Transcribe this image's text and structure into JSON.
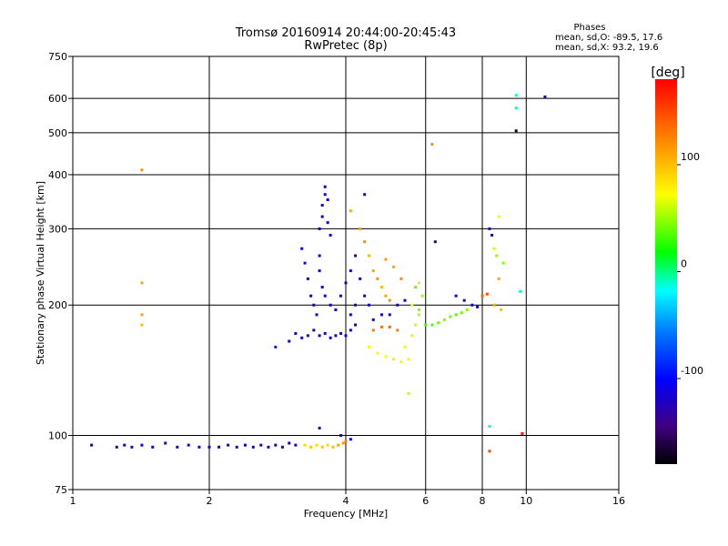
{
  "chart_data": {
    "type": "scatter",
    "title": "Tromsø 20160914 20:44:00-20:45:43",
    "subtitle": "RwPretec (8p)",
    "xlabel": "Frequency [MHz]",
    "ylabel": "Stationary phase Virtual Height [km]",
    "x_scale": "log",
    "y_scale": "log",
    "xlim": [
      1,
      16
    ],
    "ylim": [
      75,
      750
    ],
    "x_ticks": [
      1,
      2,
      4,
      6,
      8,
      10,
      16
    ],
    "y_ticks": [
      75,
      100,
      200,
      300,
      400,
      500,
      600,
      750
    ],
    "grid": true,
    "stats": {
      "heading": "Phases",
      "o_line": "mean, sd,O: -89.5, 17.6",
      "x_line": "mean, sd,X:  93.2, 19.6"
    },
    "colorbar": {
      "label": "[deg]",
      "range": [
        -180,
        180
      ],
      "ticks": [
        100,
        0,
        -100
      ],
      "colors": [
        "#ff0000",
        "#ff8000",
        "#ffff00",
        "#00ff00",
        "#00ffff",
        "#0080ff",
        "#0000ff",
        "#400080",
        "#000000"
      ]
    },
    "series": [
      {
        "color_by": "phase",
        "points": [
          [
            1.1,
            95,
            -110
          ],
          [
            1.25,
            94,
            -120
          ],
          [
            1.3,
            95,
            -110
          ],
          [
            1.35,
            94,
            -120
          ],
          [
            1.42,
            95,
            -115
          ],
          [
            1.5,
            94,
            -110
          ],
          [
            1.6,
            96,
            -120
          ],
          [
            1.7,
            94,
            -110
          ],
          [
            1.8,
            95,
            -115
          ],
          [
            1.9,
            94,
            -110
          ],
          [
            2.0,
            94,
            -115
          ],
          [
            2.1,
            94,
            -110
          ],
          [
            2.2,
            95,
            -120
          ],
          [
            2.3,
            94,
            -110
          ],
          [
            2.4,
            95,
            -115
          ],
          [
            2.5,
            94,
            -110
          ],
          [
            2.6,
            95,
            -120
          ],
          [
            2.7,
            94,
            -110
          ],
          [
            2.8,
            95,
            -115
          ],
          [
            2.9,
            94,
            -110
          ],
          [
            3.0,
            96,
            -115
          ],
          [
            3.1,
            95,
            -110
          ],
          [
            3.25,
            95,
            90
          ],
          [
            3.35,
            94,
            95
          ],
          [
            3.45,
            95,
            90
          ],
          [
            3.55,
            94,
            95
          ],
          [
            3.65,
            95,
            90
          ],
          [
            3.75,
            94,
            100
          ],
          [
            3.85,
            95,
            110
          ],
          [
            3.95,
            96,
            120
          ],
          [
            4.0,
            97,
            125
          ],
          [
            1.42,
            410,
            120
          ],
          [
            1.42,
            225,
            110
          ],
          [
            1.42,
            190,
            110
          ],
          [
            1.42,
            180,
            100
          ],
          [
            2.8,
            160,
            -90
          ],
          [
            3.0,
            165,
            -110
          ],
          [
            3.1,
            172,
            -110
          ],
          [
            3.2,
            168,
            -120
          ],
          [
            3.3,
            170,
            -110
          ],
          [
            3.4,
            175,
            -120
          ],
          [
            3.5,
            170,
            -110
          ],
          [
            3.6,
            172,
            -115
          ],
          [
            3.7,
            168,
            -110
          ],
          [
            3.8,
            170,
            -120
          ],
          [
            3.9,
            172,
            -110
          ],
          [
            4.0,
            170,
            -115
          ],
          [
            4.1,
            175,
            -110
          ],
          [
            4.2,
            180,
            -120
          ],
          [
            3.2,
            270,
            -110
          ],
          [
            3.25,
            250,
            -120
          ],
          [
            3.3,
            230,
            -110
          ],
          [
            3.35,
            210,
            -120
          ],
          [
            3.4,
            200,
            -110
          ],
          [
            3.45,
            190,
            -115
          ],
          [
            3.5,
            260,
            -110
          ],
          [
            3.5,
            300,
            -120
          ],
          [
            3.55,
            320,
            -110
          ],
          [
            3.55,
            340,
            -115
          ],
          [
            3.6,
            360,
            -110
          ],
          [
            3.6,
            375,
            -120
          ],
          [
            3.65,
            350,
            -110
          ],
          [
            3.65,
            310,
            -115
          ],
          [
            3.7,
            290,
            -110
          ],
          [
            3.5,
            240,
            -120
          ],
          [
            3.55,
            220,
            -110
          ],
          [
            3.6,
            210,
            -115
          ],
          [
            3.7,
            200,
            -110
          ],
          [
            3.8,
            195,
            -120
          ],
          [
            3.9,
            210,
            -110
          ],
          [
            4.0,
            225,
            -115
          ],
          [
            4.1,
            240,
            -110
          ],
          [
            4.2,
            260,
            -120
          ],
          [
            4.3,
            230,
            -110
          ],
          [
            4.4,
            210,
            -115
          ],
          [
            4.1,
            190,
            -110
          ],
          [
            4.2,
            200,
            -120
          ],
          [
            4.4,
            360,
            -110
          ],
          [
            4.5,
            200,
            -100
          ],
          [
            4.6,
            185,
            -120
          ],
          [
            4.8,
            190,
            -110
          ],
          [
            5.0,
            190,
            -115
          ],
          [
            5.2,
            200,
            -110
          ],
          [
            5.4,
            205,
            -100
          ],
          [
            4.1,
            330,
            110
          ],
          [
            4.3,
            300,
            110
          ],
          [
            4.4,
            280,
            120
          ],
          [
            4.5,
            260,
            100
          ],
          [
            4.6,
            240,
            110
          ],
          [
            4.7,
            230,
            120
          ],
          [
            4.8,
            220,
            100
          ],
          [
            4.9,
            210,
            110
          ],
          [
            5.0,
            205,
            120
          ],
          [
            5.1,
            245,
            110
          ],
          [
            4.9,
            255,
            115
          ],
          [
            5.3,
            230,
            120
          ],
          [
            4.6,
            175,
            130
          ],
          [
            4.8,
            178,
            130
          ],
          [
            5.0,
            178,
            140
          ],
          [
            5.2,
            175,
            130
          ],
          [
            4.5,
            160,
            70
          ],
          [
            4.7,
            155,
            75
          ],
          [
            4.9,
            152,
            70
          ],
          [
            5.1,
            150,
            80
          ],
          [
            5.3,
            148,
            70
          ],
          [
            5.5,
            150,
            75
          ],
          [
            5.4,
            160,
            70
          ],
          [
            5.6,
            170,
            80
          ],
          [
            5.7,
            180,
            60
          ],
          [
            5.8,
            190,
            55
          ],
          [
            5.6,
            200,
            70
          ],
          [
            5.5,
            125,
            60
          ],
          [
            5.8,
            225,
            60
          ],
          [
            5.9,
            210,
            50
          ],
          [
            5.7,
            220,
            40
          ],
          [
            5.8,
            195,
            45
          ],
          [
            6.0,
            180,
            30
          ],
          [
            6.2,
            180,
            35
          ],
          [
            6.4,
            182,
            40
          ],
          [
            6.6,
            185,
            45
          ],
          [
            6.8,
            188,
            40
          ],
          [
            7.0,
            190,
            35
          ],
          [
            7.2,
            192,
            40
          ],
          [
            7.4,
            195,
            45
          ],
          [
            7.0,
            210,
            -110
          ],
          [
            7.3,
            205,
            -100
          ],
          [
            7.6,
            200,
            -110
          ],
          [
            7.8,
            198,
            -100
          ],
          [
            8.0,
            210,
            140
          ],
          [
            8.2,
            212,
            150
          ],
          [
            8.5,
            200,
            110
          ],
          [
            8.8,
            195,
            100
          ],
          [
            8.3,
            300,
            -120
          ],
          [
            8.4,
            290,
            -100
          ],
          [
            8.5,
            270,
            60
          ],
          [
            8.6,
            260,
            50
          ],
          [
            8.9,
            250,
            45
          ],
          [
            8.7,
            320,
            70
          ],
          [
            8.7,
            230,
            110
          ],
          [
            6.2,
            470,
            120
          ],
          [
            6.3,
            280,
            -150
          ],
          [
            9.5,
            610,
            -10
          ],
          [
            9.5,
            570,
            -5
          ],
          [
            9.5,
            505,
            -170
          ],
          [
            9.7,
            215,
            -10
          ],
          [
            11.0,
            605,
            -130
          ],
          [
            8.3,
            105,
            -20
          ],
          [
            8.3,
            92,
            150
          ],
          [
            9.8,
            101,
            170
          ],
          [
            3.5,
            104,
            -120
          ],
          [
            3.9,
            100,
            -110
          ],
          [
            4.1,
            98,
            -100
          ]
        ]
      }
    ]
  }
}
